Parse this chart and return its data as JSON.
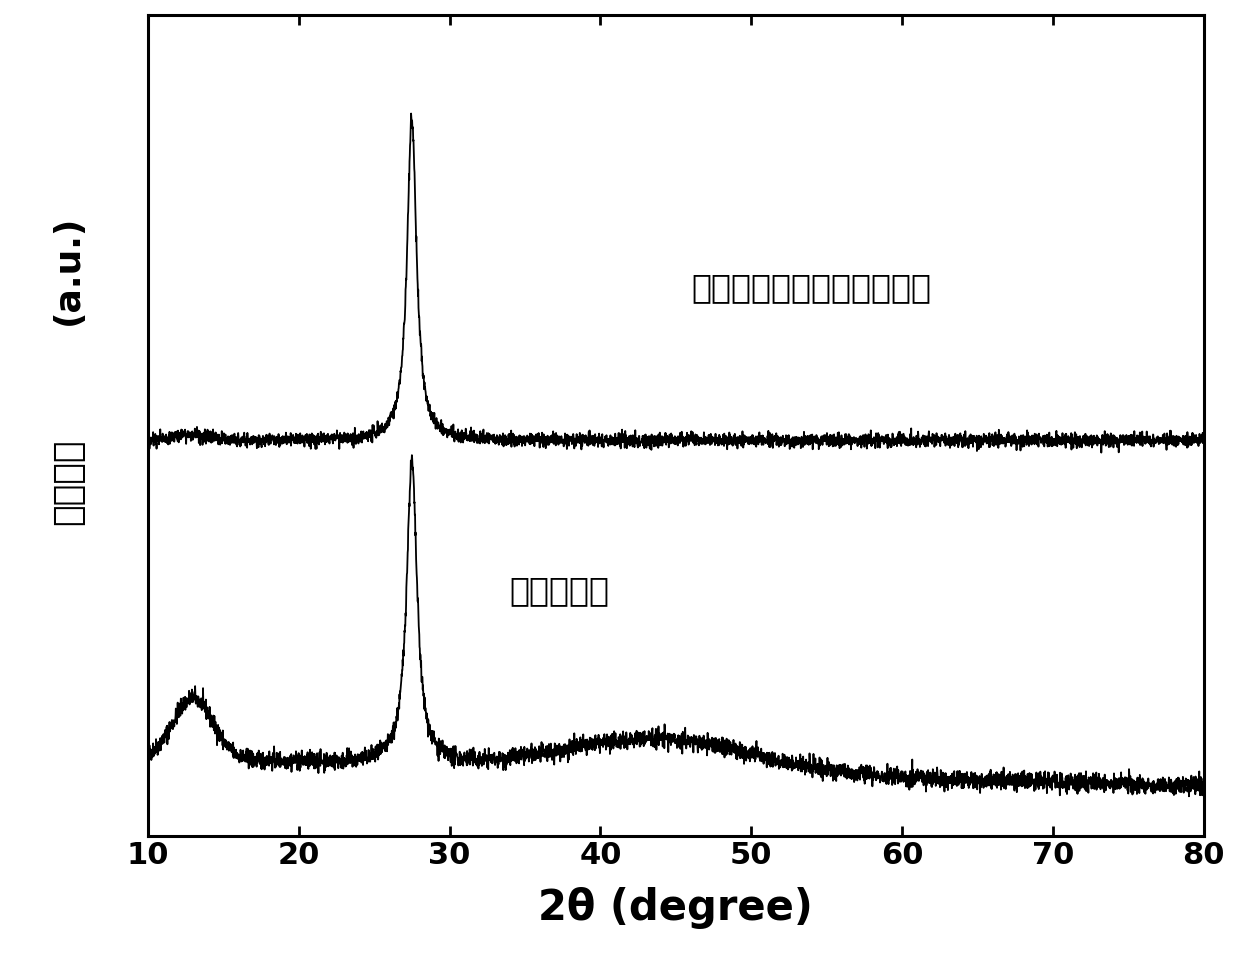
{
  "xlabel": "2θ (degree)",
  "ylabel_au": "(a.u.)",
  "ylabel_cn": "相对强度",
  "xmin": 10,
  "xmax": 80,
  "label_top": "近红外光响应型薄层氮化碘",
  "label_bottom": "体相氮化碘",
  "line_color": "#000000",
  "bg_color": "#ffffff",
  "annotation_fontsize": 24,
  "axis_fontsize": 26,
  "tick_fontsize": 22,
  "xlabel_fontsize": 30
}
